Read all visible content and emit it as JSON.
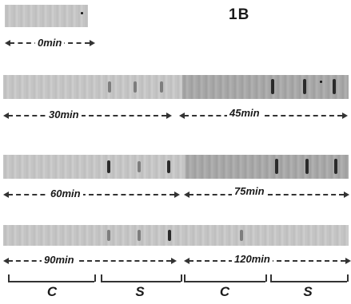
{
  "panel_label": "1B",
  "timepoints": [
    "0min",
    "30min",
    "45min",
    "60min",
    "75min",
    "90min",
    "120min"
  ],
  "lanes": [
    "C",
    "S",
    "C",
    "S"
  ]
}
